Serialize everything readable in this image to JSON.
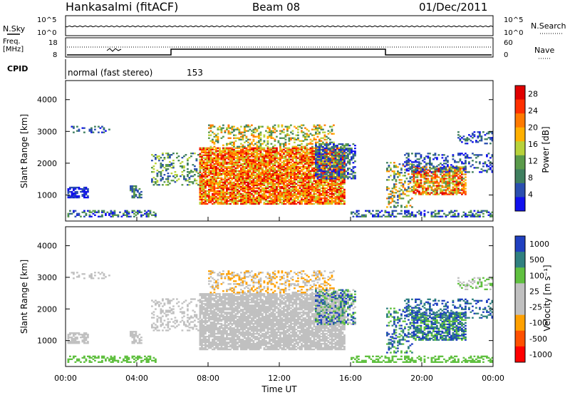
{
  "header": {
    "station": "Hankasalmi (fitACF)",
    "beam": "Beam 08",
    "date": "01/Dec/2011"
  },
  "status_panel": {
    "nsky_label": "N.Sky",
    "nsky_ticks": [
      "10^5",
      "10^0"
    ],
    "nsearch_label": "N.Search",
    "nsearch_ticks": [
      "10^5",
      "10^0"
    ],
    "freq_label": "Freq.",
    "freq_unit": "[MHz]",
    "freq_ticks": [
      "18",
      "8"
    ],
    "nave_label": "Nave",
    "nave_ticks": [
      "60",
      "0"
    ],
    "cpid_label": "CPID",
    "cpid_text": "normal (fast stereo)",
    "cpid_value": "153"
  },
  "colors": {
    "power_scale": [
      "#1111ee",
      "#2b4fb0",
      "#3f7f5f",
      "#5a9a4a",
      "#b8d23a",
      "#ffb000",
      "#ff7a00",
      "#ff3000",
      "#e00000"
    ],
    "velocity_scale": [
      "#2040c0",
      "#308080",
      "#60c040",
      "#c0c0c0",
      "#c0c0c0",
      "#ffa000",
      "#ff5000",
      "#ff0000"
    ]
  },
  "chart_data": [
    {
      "type": "heatmap",
      "name": "power",
      "ylabel": "Slant Range [km]",
      "xlim": [
        0,
        24
      ],
      "ylim": [
        180,
        4600
      ],
      "yticks": [
        "1000",
        "2000",
        "3000",
        "4000"
      ],
      "colorbar_label": "Power [dB]",
      "colorbar_ticks": [
        "4",
        "8",
        "12",
        "16",
        "20",
        "24",
        "28"
      ],
      "colorbar_range": [
        0,
        30
      ]
    },
    {
      "type": "heatmap",
      "name": "velocity",
      "ylabel": "Slant Range [km]",
      "xlim": [
        0,
        24
      ],
      "ylim": [
        180,
        4600
      ],
      "yticks": [
        "1000",
        "2000",
        "3000",
        "4000"
      ],
      "colorbar_label": "Velocity [m s⁻¹]",
      "colorbar_ticks": [
        "1000",
        "500",
        "100",
        "25",
        "-25",
        "-100",
        "-500",
        "-1000"
      ]
    }
  ],
  "x_axis": {
    "label": "Time UT",
    "ticks": [
      "00:00",
      "04:00",
      "08:00",
      "12:00",
      "16:00",
      "20:00",
      "00:00"
    ]
  }
}
